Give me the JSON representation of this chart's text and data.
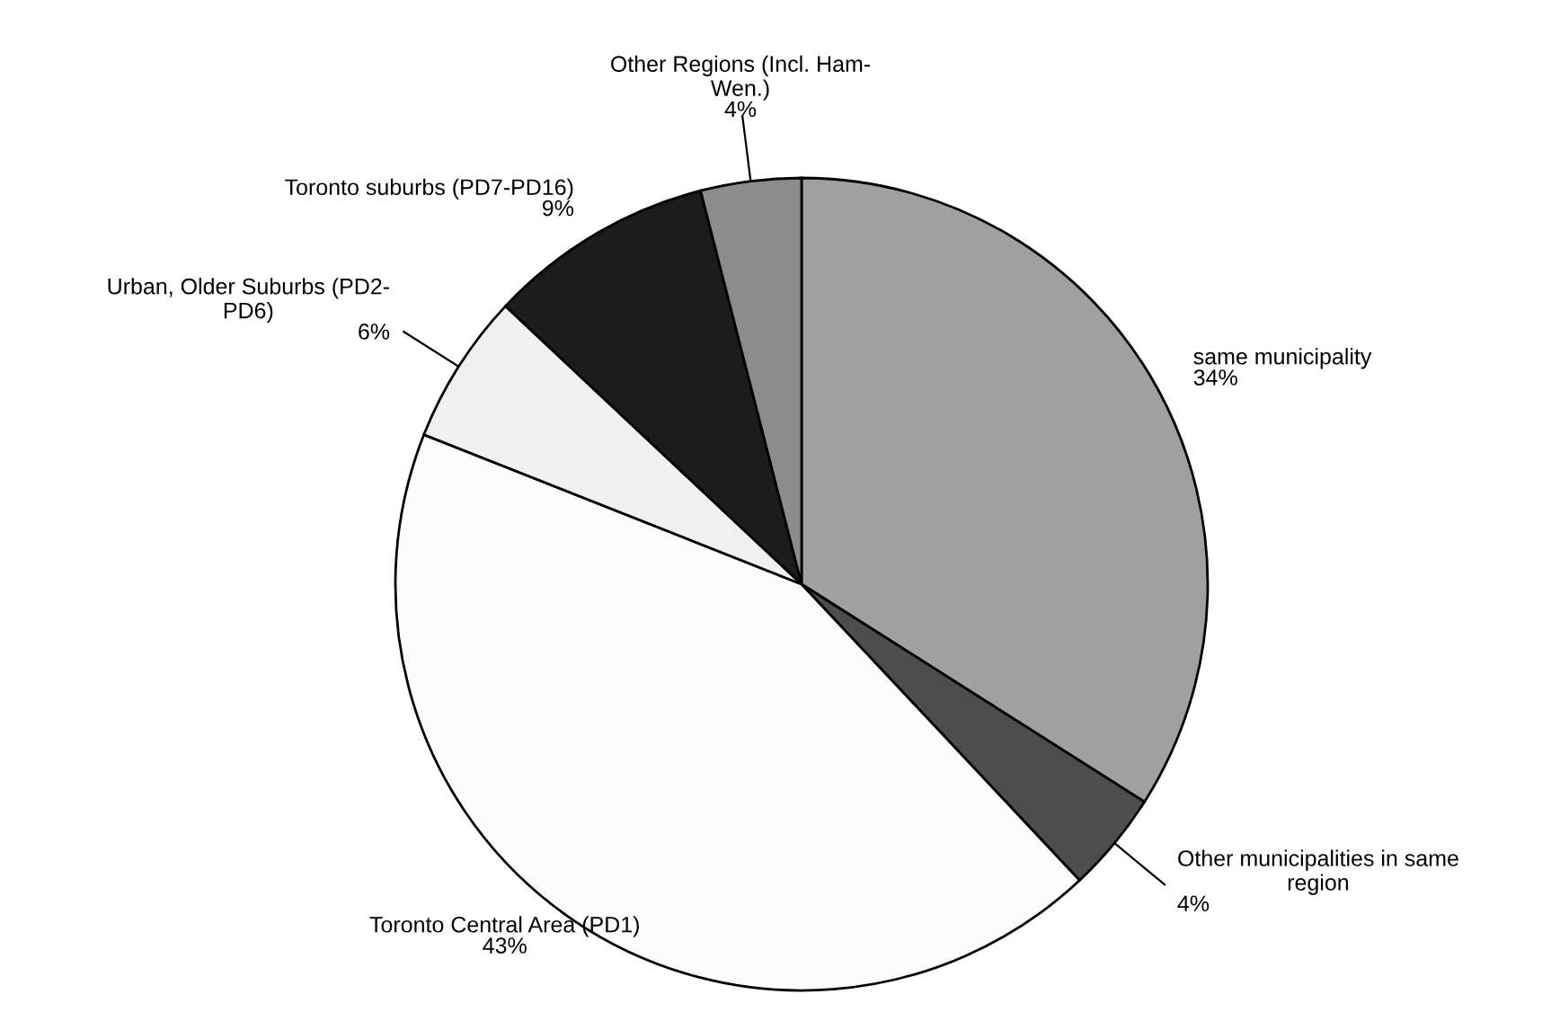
{
  "chart_data": {
    "type": "pie",
    "categories": [
      "same municipality",
      "Other municipalities in same\nregion",
      "Toronto Central Area (PD1)",
      "Urban, Older Suburbs (PD2-\nPD6)",
      "Toronto suburbs (PD7-PD16)",
      "Other Regions (Incl. Ham-\nWen.)"
    ],
    "values": [
      34,
      4,
      43,
      6,
      9,
      4
    ],
    "value_labels": [
      "34%",
      "4%",
      "43%",
      "6%",
      "9%",
      "4%"
    ],
    "colors": [
      "#a0a0a0",
      "#4d4d4d",
      "#fcfcfc",
      "#f0f0f0",
      "#1c1c1c",
      "#8c8c8c"
    ]
  }
}
